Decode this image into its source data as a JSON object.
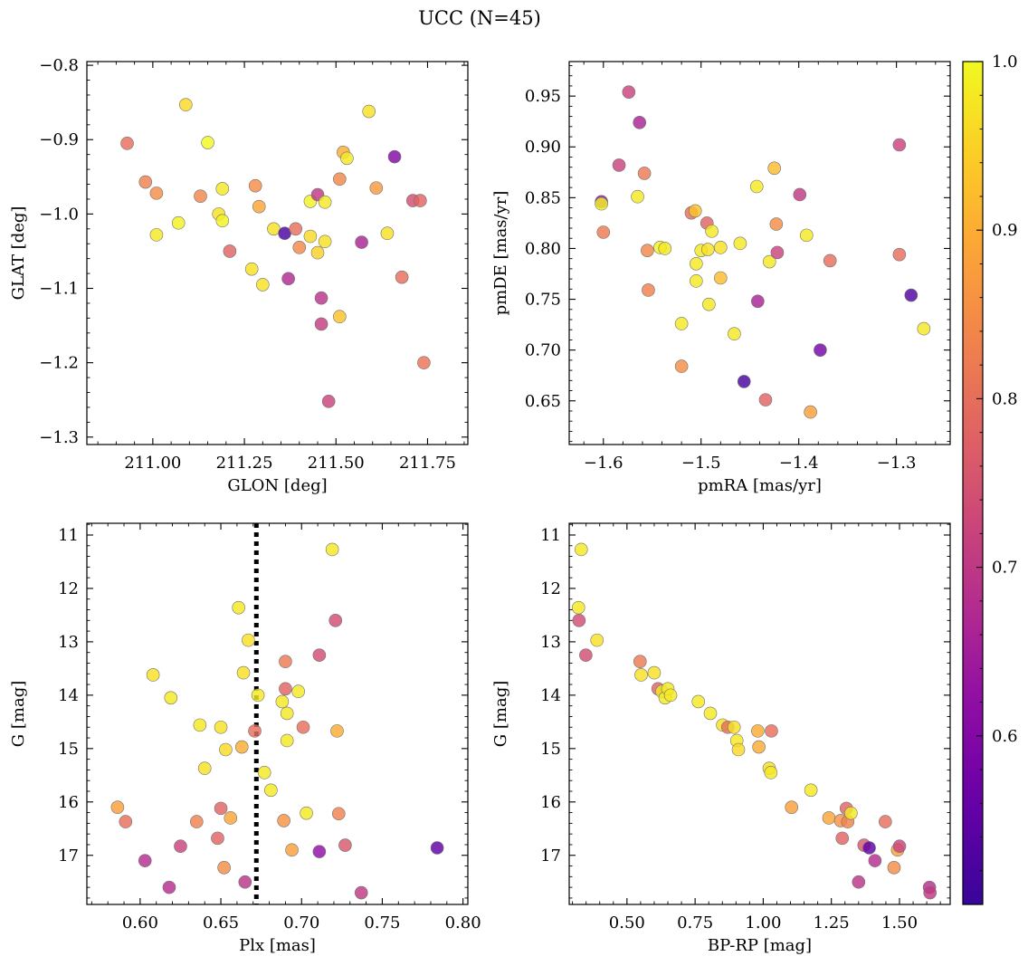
{
  "figure_title": "UCC (N=45)",
  "chart_data": [
    {
      "type": "scatter",
      "name": "lonlat",
      "xlabel": "GLON [deg]",
      "ylabel": "GLAT [deg]",
      "xlim": [
        210.82,
        211.86
      ],
      "ylim": [
        -1.31,
        -0.795
      ],
      "invert_y": false,
      "xticks": [
        211.0,
        211.25,
        211.5,
        211.75
      ],
      "xtick_labels": [
        "211.00",
        "211.25",
        "211.50",
        "211.75"
      ],
      "yticks": [
        -1.3,
        -1.2,
        -1.1,
        -1.0,
        -0.9,
        -0.8
      ],
      "ytick_labels": [
        "−1.3",
        "−1.2",
        "−1.1",
        "−1.0",
        "−0.9",
        "−0.8"
      ],
      "points": [
        [
          210.93,
          -0.905,
          0.8
        ],
        [
          210.98,
          -0.957,
          0.83
        ],
        [
          211.01,
          -0.972,
          0.85
        ],
        [
          211.01,
          -1.028,
          0.98
        ],
        [
          211.07,
          -1.012,
          0.99
        ],
        [
          211.09,
          -0.853,
          0.96
        ],
        [
          211.13,
          -0.976,
          0.84
        ],
        [
          211.15,
          -0.904,
          1.0
        ],
        [
          211.18,
          -1.0,
          0.97
        ],
        [
          211.19,
          -0.966,
          0.98
        ],
        [
          211.19,
          -1.009,
          0.99
        ],
        [
          211.21,
          -1.05,
          0.78
        ],
        [
          211.27,
          -1.074,
          0.97
        ],
        [
          211.28,
          -0.962,
          0.85
        ],
        [
          211.29,
          -0.99,
          0.89
        ],
        [
          211.3,
          -1.095,
          0.97
        ],
        [
          211.33,
          -1.02,
          0.97
        ],
        [
          211.36,
          -1.026,
          0.52
        ],
        [
          211.37,
          -1.087,
          0.67
        ],
        [
          211.39,
          -1.02,
          0.8
        ],
        [
          211.4,
          -1.045,
          0.84
        ],
        [
          211.43,
          -0.983,
          0.99
        ],
        [
          211.43,
          -1.03,
          0.96
        ],
        [
          211.45,
          -0.974,
          0.7
        ],
        [
          211.45,
          -1.052,
          0.95
        ],
        [
          211.46,
          -1.113,
          0.69
        ],
        [
          211.46,
          -1.148,
          0.71
        ],
        [
          211.47,
          -1.037,
          0.97
        ],
        [
          211.47,
          -0.984,
          0.98
        ],
        [
          211.48,
          -1.252,
          0.72
        ],
        [
          211.51,
          -1.138,
          0.93
        ],
        [
          211.51,
          -0.953,
          0.84
        ],
        [
          211.52,
          -0.917,
          0.9
        ],
        [
          211.53,
          -0.925,
          0.98
        ],
        [
          211.57,
          -1.038,
          0.66
        ],
        [
          211.59,
          -0.862,
          0.97
        ],
        [
          211.61,
          -0.965,
          0.87
        ],
        [
          211.64,
          -1.026,
          0.97
        ],
        [
          211.66,
          -0.923,
          0.6
        ],
        [
          211.68,
          -1.085,
          0.8
        ],
        [
          211.71,
          -0.982,
          0.74
        ],
        [
          211.73,
          -0.982,
          0.78
        ],
        [
          211.74,
          -1.2,
          0.81
        ]
      ]
    },
    {
      "type": "scatter",
      "name": "pm",
      "xlabel": "pmRA [mas/yr]",
      "ylabel": "pmDE [mas/yr]",
      "xlim": [
        -1.635,
        -1.245
      ],
      "ylim": [
        0.607,
        0.984
      ],
      "invert_y": false,
      "xticks": [
        -1.6,
        -1.5,
        -1.4,
        -1.3
      ],
      "xtick_labels": [
        "−1.6",
        "−1.5",
        "−1.4",
        "−1.3"
      ],
      "yticks": [
        0.65,
        0.7,
        0.75,
        0.8,
        0.85,
        0.9,
        0.95
      ],
      "ytick_labels": [
        "0.65",
        "0.70",
        "0.75",
        "0.80",
        "0.85",
        "0.90",
        "0.95"
      ],
      "points": [
        [
          -1.602,
          0.846,
          0.62
        ],
        [
          -1.602,
          0.844,
          0.99
        ],
        [
          -1.6,
          0.816,
          0.82
        ],
        [
          -1.584,
          0.882,
          0.72
        ],
        [
          -1.574,
          0.954,
          0.72
        ],
        [
          -1.565,
          0.851,
          0.98
        ],
        [
          -1.563,
          0.924,
          0.66
        ],
        [
          -1.558,
          0.874,
          0.82
        ],
        [
          -1.555,
          0.798,
          0.84
        ],
        [
          -1.554,
          0.759,
          0.83
        ],
        [
          -1.542,
          0.801,
          0.99
        ],
        [
          -1.537,
          0.8,
          0.98
        ],
        [
          -1.52,
          0.726,
          0.98
        ],
        [
          -1.52,
          0.684,
          0.85
        ],
        [
          -1.51,
          0.835,
          0.8
        ],
        [
          -1.506,
          0.837,
          0.93
        ],
        [
          -1.505,
          0.785,
          0.98
        ],
        [
          -1.505,
          0.768,
          0.98
        ],
        [
          -1.5,
          0.798,
          0.98
        ],
        [
          -1.494,
          0.825,
          0.78
        ],
        [
          -1.493,
          0.799,
          0.97
        ],
        [
          -1.492,
          0.745,
          0.98
        ],
        [
          -1.489,
          0.817,
          0.98
        ],
        [
          -1.48,
          0.801,
          0.97
        ],
        [
          -1.48,
          0.771,
          0.92
        ],
        [
          -1.466,
          0.716,
          0.98
        ],
        [
          -1.46,
          0.805,
          0.98
        ],
        [
          -1.456,
          0.669,
          0.52
        ],
        [
          -1.443,
          0.861,
          0.98
        ],
        [
          -1.442,
          0.748,
          0.66
        ],
        [
          -1.434,
          0.651,
          0.78
        ],
        [
          -1.43,
          0.787,
          0.98
        ],
        [
          -1.425,
          0.879,
          0.92
        ],
        [
          -1.423,
          0.824,
          0.85
        ],
        [
          -1.422,
          0.796,
          0.72
        ],
        [
          -1.399,
          0.853,
          0.7
        ],
        [
          -1.392,
          0.813,
          0.98
        ],
        [
          -1.388,
          0.639,
          0.88
        ],
        [
          -1.378,
          0.7,
          0.58
        ],
        [
          -1.368,
          0.788,
          0.8
        ],
        [
          -1.297,
          0.902,
          0.72
        ],
        [
          -1.297,
          0.794,
          0.8
        ],
        [
          -1.285,
          0.754,
          0.53
        ],
        [
          -1.272,
          0.721,
          0.98
        ]
      ]
    },
    {
      "type": "scatter",
      "name": "plx_g",
      "xlabel": "Plx [mas]",
      "ylabel": "G [mag]",
      "xlim": [
        0.567,
        0.803
      ],
      "ylim": [
        17.92,
        10.78
      ],
      "invert_y": true,
      "xticks": [
        0.6,
        0.65,
        0.7,
        0.75,
        0.8
      ],
      "xtick_labels": [
        "0.60",
        "0.65",
        "0.70",
        "0.75",
        "0.80"
      ],
      "yticks": [
        11,
        12,
        13,
        14,
        15,
        16,
        17
      ],
      "ytick_labels": [
        "11",
        "12",
        "13",
        "14",
        "15",
        "16",
        "17"
      ],
      "vline": {
        "x": 0.672,
        "style": "dotted",
        "color": "#000000"
      },
      "points": [
        [
          0.586,
          16.1,
          0.88
        ],
        [
          0.591,
          16.37,
          0.8
        ],
        [
          0.603,
          17.1,
          0.68
        ],
        [
          0.608,
          13.62,
          0.97
        ],
        [
          0.618,
          17.6,
          0.68
        ],
        [
          0.619,
          14.05,
          0.98
        ],
        [
          0.625,
          16.83,
          0.72
        ],
        [
          0.635,
          16.37,
          0.83
        ],
        [
          0.637,
          14.56,
          0.98
        ],
        [
          0.64,
          15.37,
          0.97
        ],
        [
          0.648,
          16.68,
          0.78
        ],
        [
          0.65,
          16.12,
          0.78
        ],
        [
          0.65,
          14.6,
          0.97
        ],
        [
          0.652,
          17.23,
          0.85
        ],
        [
          0.653,
          15.02,
          0.96
        ],
        [
          0.656,
          16.3,
          0.89
        ],
        [
          0.661,
          12.36,
          0.98
        ],
        [
          0.663,
          14.97,
          0.9
        ],
        [
          0.664,
          13.58,
          0.97
        ],
        [
          0.665,
          17.5,
          0.69
        ],
        [
          0.667,
          12.97,
          0.97
        ],
        [
          0.671,
          14.67,
          0.8
        ],
        [
          0.673,
          14.0,
          0.98
        ],
        [
          0.677,
          15.45,
          0.98
        ],
        [
          0.681,
          15.78,
          0.98
        ],
        [
          0.688,
          14.12,
          0.98
        ],
        [
          0.689,
          16.35,
          0.86
        ],
        [
          0.69,
          13.88,
          0.78
        ],
        [
          0.69,
          13.37,
          0.82
        ],
        [
          0.691,
          14.34,
          0.98
        ],
        [
          0.691,
          14.85,
          0.98
        ],
        [
          0.694,
          16.9,
          0.88
        ],
        [
          0.698,
          13.93,
          0.98
        ],
        [
          0.701,
          14.6,
          0.8
        ],
        [
          0.703,
          16.21,
          0.98
        ],
        [
          0.711,
          16.93,
          0.62
        ],
        [
          0.711,
          13.25,
          0.74
        ],
        [
          0.719,
          11.27,
          0.98
        ],
        [
          0.721,
          12.6,
          0.74
        ],
        [
          0.722,
          14.67,
          0.9
        ],
        [
          0.723,
          16.22,
          0.83
        ],
        [
          0.727,
          16.81,
          0.76
        ],
        [
          0.737,
          17.7,
          0.7
        ],
        [
          0.784,
          16.86,
          0.55
        ]
      ]
    },
    {
      "type": "scatter",
      "name": "cmd",
      "xlabel": "BP-RP [mag]",
      "ylabel": "G [mag]",
      "xlim": [
        0.288,
        1.686
      ],
      "ylim": [
        17.92,
        10.78
      ],
      "invert_y": true,
      "xticks": [
        0.5,
        0.75,
        1.0,
        1.25,
        1.5
      ],
      "xtick_labels": [
        "0.50",
        "0.75",
        "1.00",
        "1.25",
        "1.50"
      ],
      "yticks": [
        11,
        12,
        13,
        14,
        15,
        16,
        17
      ],
      "ytick_labels": [
        "11",
        "12",
        "13",
        "14",
        "15",
        "16",
        "17"
      ],
      "points": [
        [
          0.322,
          12.36,
          0.98
        ],
        [
          0.324,
          12.6,
          0.74
        ],
        [
          0.332,
          11.27,
          0.98
        ],
        [
          0.349,
          13.25,
          0.74
        ],
        [
          0.39,
          12.97,
          0.97
        ],
        [
          0.548,
          13.37,
          0.82
        ],
        [
          0.552,
          13.62,
          0.97
        ],
        [
          0.6,
          13.58,
          0.97
        ],
        [
          0.614,
          13.88,
          0.78
        ],
        [
          0.628,
          13.93,
          0.98
        ],
        [
          0.64,
          14.05,
          0.98
        ],
        [
          0.65,
          13.88,
          0.98
        ],
        [
          0.66,
          14.0,
          0.98
        ],
        [
          0.762,
          14.12,
          0.98
        ],
        [
          0.806,
          14.34,
          0.98
        ],
        [
          0.851,
          14.56,
          0.97
        ],
        [
          0.87,
          14.6,
          0.8
        ],
        [
          0.893,
          14.6,
          0.97
        ],
        [
          0.903,
          14.85,
          0.98
        ],
        [
          0.909,
          15.02,
          0.96
        ],
        [
          0.98,
          14.67,
          0.9
        ],
        [
          0.984,
          14.97,
          0.9
        ],
        [
          1.022,
          15.37,
          0.97
        ],
        [
          1.028,
          15.45,
          0.98
        ],
        [
          1.03,
          14.67,
          0.8
        ],
        [
          1.104,
          16.1,
          0.88
        ],
        [
          1.175,
          15.78,
          0.98
        ],
        [
          1.241,
          16.3,
          0.89
        ],
        [
          1.284,
          16.35,
          0.86
        ],
        [
          1.29,
          16.68,
          0.78
        ],
        [
          1.305,
          16.12,
          0.78
        ],
        [
          1.31,
          16.37,
          0.83
        ],
        [
          1.322,
          16.21,
          0.98
        ],
        [
          1.35,
          17.5,
          0.69
        ],
        [
          1.37,
          16.81,
          0.76
        ],
        [
          1.389,
          16.86,
          0.55
        ],
        [
          1.41,
          17.1,
          0.68
        ],
        [
          1.448,
          16.37,
          0.8
        ],
        [
          1.48,
          17.23,
          0.85
        ],
        [
          1.493,
          16.9,
          0.88
        ],
        [
          1.5,
          16.83,
          0.72
        ],
        [
          1.61,
          17.6,
          0.68
        ],
        [
          1.612,
          17.7,
          0.7
        ]
      ]
    }
  ],
  "colorbar": {
    "colormap": "plasma",
    "vmin": 0.5,
    "vmax": 1.0,
    "ticks": [
      0.6,
      0.7,
      0.8,
      0.9,
      1.0
    ],
    "tick_labels": [
      "0.6",
      "0.7",
      "0.8",
      "0.9",
      "1.0"
    ]
  }
}
